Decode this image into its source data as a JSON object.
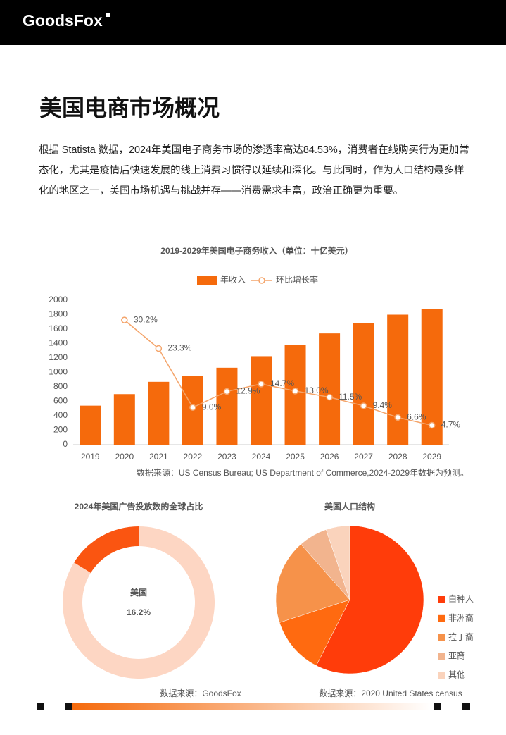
{
  "header": {
    "logo": "GoodsFox"
  },
  "title": "美国电商市场概况",
  "intro": "根据 Statista 数据，2024年美国电子商务市场的渗透率高达84.53%，消费者在线购买行为更加常态化，尤其是疫情后快速发展的线上消费习惯得以延续和深化。与此同时，作为人口结构最多样化的地区之一，美国市场机遇与挑战并存——消费需求丰富，政治正确更为重要。",
  "chart_data": [
    {
      "type": "bar",
      "title": "2019-2029年美国电子商务收入（单位：十亿美元）",
      "categories": [
        "2019",
        "2020",
        "2021",
        "2022",
        "2023",
        "2024",
        "2025",
        "2026",
        "2027",
        "2028",
        "2029"
      ],
      "series": [
        {
          "name": "年收入",
          "color": "#f56a0c",
          "values": [
            540,
            700,
            870,
            950,
            1065,
            1225,
            1385,
            1540,
            1685,
            1800,
            1880
          ]
        },
        {
          "name": "环比增长率",
          "type": "line",
          "axis": "y2",
          "color": "#f4a46a",
          "values": [
            null,
            30.2,
            23.3,
            9.0,
            12.9,
            14.7,
            13.0,
            11.5,
            9.4,
            6.6,
            4.7
          ],
          "value_labels": [
            null,
            "30.2%",
            "23.3%",
            "9.0%",
            "12.9%",
            "14.7%",
            "13.0%",
            "11.5%",
            "9.4%",
            "6.6%",
            "4.7%"
          ]
        }
      ],
      "ylim": [
        0,
        2000
      ],
      "yticks": [
        0,
        200,
        400,
        600,
        800,
        1000,
        1200,
        1400,
        1600,
        1800,
        2000
      ],
      "y2lim": [
        0,
        35
      ],
      "grid": false,
      "legend": "top",
      "source": "数据来源：US Census Bureau; US Department of Commerce,2024-2029年数据为预测。"
    },
    {
      "type": "donut",
      "title": "2024年美国广告投放数的全球占比",
      "categories": [
        "美国",
        null
      ],
      "values": [
        16.2,
        83.8
      ],
      "value_labels": [
        "16.2%",
        null
      ],
      "colors": [
        "#fa5511",
        "#fdd6c3"
      ],
      "source": "数据来源：GoodsFox"
    },
    {
      "type": "pie",
      "title": "美国人口结构",
      "categories": [
        "白种人",
        "非洲裔",
        "拉丁裔",
        "亚裔",
        "其他"
      ],
      "values": [
        57.5,
        12.5,
        18.5,
        6.3,
        5.2
      ],
      "colors": [
        "#ff3c0a",
        "#ff6a10",
        "#f6924a",
        "#f2b48e",
        "#fad3bc"
      ],
      "legend": "right",
      "source": "数据来源：2020 United States census"
    }
  ]
}
